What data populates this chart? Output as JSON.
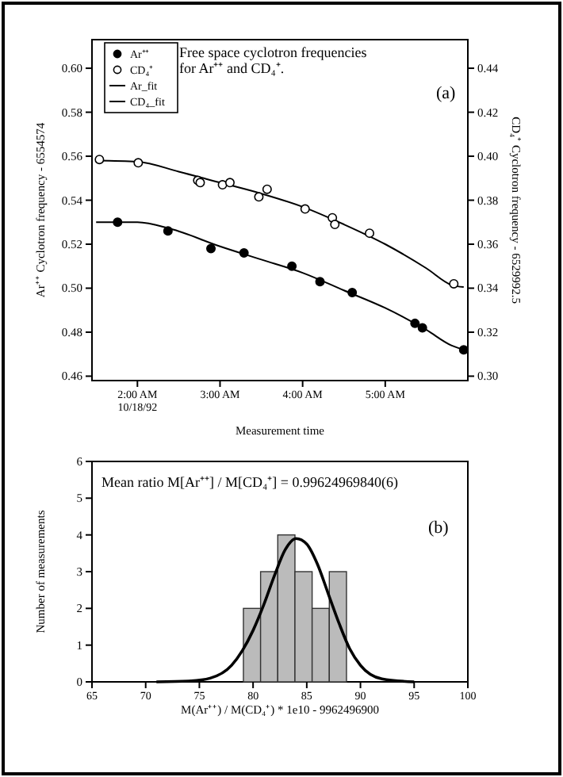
{
  "chart_data": [
    {
      "type": "scatter",
      "xlabel": "Measurement time",
      "ylabel": "Ar⁺⁺ Cyclotron frequency - 6554574",
      "y2label": "CD₄⁺ Cyclotron frequency - 6529992.5",
      "annotations": [
        "Free space cyclotron frequencies\nfor Ar⁺⁺ and CD₄⁺.",
        "(a)"
      ],
      "xlim": [
        1.45,
        6.0
      ],
      "xticks": [
        {
          "value": 2,
          "label": "2:00 AM\n10/18/92"
        },
        {
          "value": 3,
          "label": "3:00 AM"
        },
        {
          "value": 4,
          "label": "4:00 AM"
        },
        {
          "value": 5,
          "label": "5:00 AM"
        }
      ],
      "ylim": [
        0.458,
        0.613
      ],
      "yticks": [
        {
          "value": 0.46,
          "label": "0.46"
        },
        {
          "value": 0.48,
          "label": "0.48"
        },
        {
          "value": 0.5,
          "label": "0.50"
        },
        {
          "value": 0.52,
          "label": "0.52"
        },
        {
          "value": 0.54,
          "label": "0.54"
        },
        {
          "value": 0.56,
          "label": "0.56"
        },
        {
          "value": 0.58,
          "label": "0.58"
        },
        {
          "value": 0.6,
          "label": "0.60"
        }
      ],
      "y2lim": [
        0.298,
        0.453
      ],
      "y2ticks": [
        {
          "value": 0.3,
          "label": "0.30"
        },
        {
          "value": 0.32,
          "label": "0.32"
        },
        {
          "value": 0.34,
          "label": "0.34"
        },
        {
          "value": 0.36,
          "label": "0.36"
        },
        {
          "value": 0.38,
          "label": "0.38"
        },
        {
          "value": 0.4,
          "label": "0.40"
        },
        {
          "value": 0.42,
          "label": "0.42"
        },
        {
          "value": 0.44,
          "label": "0.44"
        }
      ],
      "legend": "top left",
      "series": [
        {
          "name": "Ar⁺⁺",
          "marker": "circle",
          "color": "#000000",
          "x": [
            1.76,
            2.37,
            2.89,
            3.29,
            3.87,
            4.21,
            4.6,
            5.36,
            5.45,
            5.95
          ],
          "values": [
            0.53,
            0.526,
            0.518,
            0.516,
            0.51,
            0.503,
            0.498,
            0.484,
            0.482,
            0.472
          ]
        },
        {
          "name": "CD₄⁺",
          "marker": "circle",
          "axis": "y2",
          "color": "#ffffff",
          "x": [
            1.54,
            2.01,
            2.73,
            2.76,
            3.03,
            3.12,
            3.47,
            3.57,
            4.03,
            4.36,
            4.39,
            4.81,
            5.83
          ],
          "values": [
            0.3985,
            0.397,
            0.389,
            0.388,
            0.387,
            0.388,
            0.3815,
            0.385,
            0.376,
            0.372,
            0.369,
            0.365,
            0.342
          ]
        },
        {
          "name": "Ar_fit",
          "type": "line",
          "color": "#000000",
          "line_style": "solid",
          "marker": "none",
          "x": [
            1.5,
            2.0,
            2.4,
            3.0,
            3.5,
            4.0,
            4.5,
            5.0,
            5.5,
            5.8,
            6.0
          ],
          "values": [
            0.53,
            0.53,
            0.527,
            0.519,
            0.513,
            0.507,
            0.499,
            0.491,
            0.481,
            0.474,
            0.4715
          ]
        },
        {
          "name": "CD₄_fit",
          "type": "line",
          "axis": "y2",
          "color": "#000000",
          "line_style": "solid",
          "marker": "none",
          "x": [
            1.5,
            2.0,
            2.5,
            3.0,
            3.5,
            4.0,
            4.5,
            5.0,
            5.5,
            5.8,
            5.95
          ],
          "values": [
            0.398,
            0.3975,
            0.393,
            0.388,
            0.383,
            0.377,
            0.369,
            0.36,
            0.349,
            0.3415,
            0.3405
          ]
        }
      ]
    },
    {
      "type": "histogram",
      "xlabel": "M(Ar⁺⁺) / M(CD₄⁺) * 1e10 - 9962496900",
      "ylabel": "Number of measurements",
      "annotations": [
        "Mean ratio M[Ar⁺⁺] / M[CD₄⁺] = 0.99624969840(6)",
        "(b)"
      ],
      "xlim": [
        65,
        100
      ],
      "xticks": [
        65,
        70,
        75,
        80,
        85,
        90,
        95,
        100
      ],
      "ylim": [
        0,
        6
      ],
      "yticks": [
        0,
        1,
        2,
        3,
        4,
        5,
        6
      ],
      "series": [
        {
          "color": "#bbbbbb",
          "bins": [
            79.1,
            80.7,
            82.3,
            83.9,
            85.5,
            87.1,
            88.7
          ],
          "values": [
            2,
            3,
            4,
            3,
            2,
            3
          ]
        },
        {
          "type": "line",
          "color": "#000000",
          "x": [
            71,
            74,
            76,
            78,
            79,
            80,
            81,
            82,
            83,
            84,
            85,
            86,
            87,
            88,
            89,
            90,
            92,
            95
          ],
          "values": [
            0,
            0.02,
            0.1,
            0.45,
            0.85,
            1.4,
            2.1,
            2.9,
            3.6,
            3.9,
            3.75,
            3.2,
            2.4,
            1.6,
            0.9,
            0.45,
            0.08,
            0
          ]
        }
      ]
    }
  ]
}
